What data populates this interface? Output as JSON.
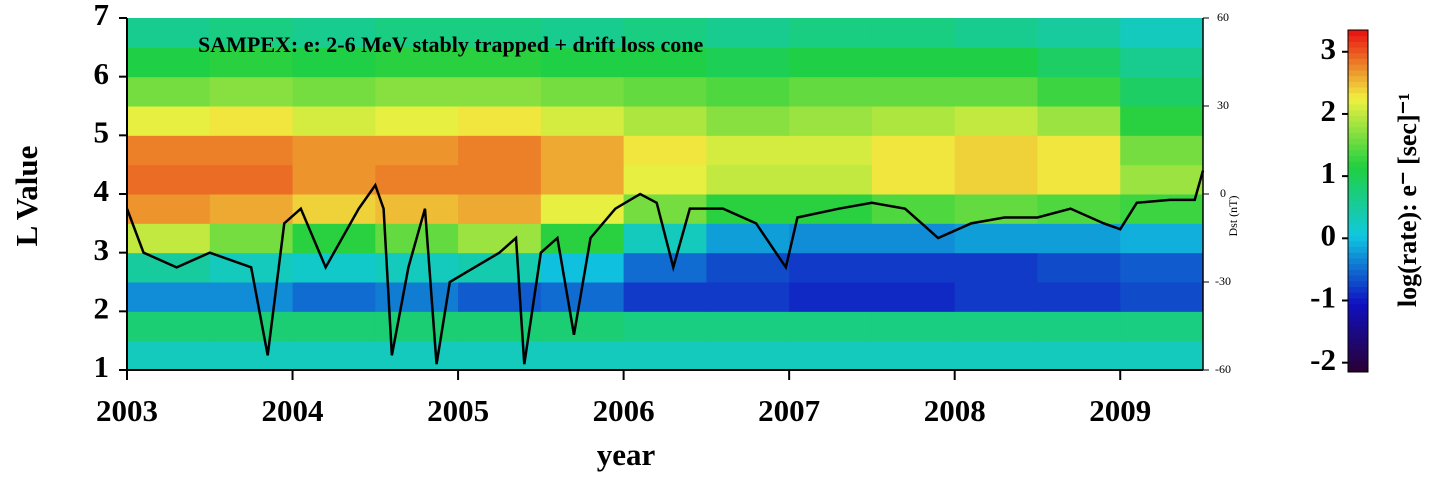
{
  "chart_data": {
    "type": "heatmap",
    "title": "SAMPEX:  e: 2-6 MeV stably trapped + drift loss cone",
    "xlabel": "year",
    "ylabel": "L Value",
    "y2label": "Dst (nT)",
    "colorbar_label": "log(rate): e⁻ [sec]⁻¹",
    "xlim": [
      2003,
      2009.5
    ],
    "xticks": [
      2003,
      2004,
      2005,
      2006,
      2007,
      2008,
      2009
    ],
    "ylim": [
      1,
      7
    ],
    "yticks": [
      1,
      2,
      3,
      4,
      5,
      6,
      7
    ],
    "y2lim": [
      -60,
      60
    ],
    "y2ticks": [
      -60,
      -30,
      0,
      30,
      60
    ],
    "zlim": [
      -2.15,
      3.35
    ],
    "zticks": [
      -2,
      -1,
      0,
      1,
      2,
      3
    ],
    "colormap": [
      "#2a0030",
      "#1010c0",
      "#10c8e0",
      "#20d040",
      "#f0f040",
      "#e81010"
    ],
    "x_bins": [
      2003,
      2003.5,
      2004,
      2004.5,
      2005,
      2005.5,
      2006,
      2006.5,
      2007,
      2007.5,
      2008,
      2008.5,
      2009,
      2009.5
    ],
    "y_bins": [
      1,
      1.5,
      2,
      2.5,
      3,
      3.5,
      4,
      4.5,
      5,
      5.5,
      6,
      6.5,
      7
    ],
    "z": [
      [
        0.3,
        0.3,
        0.3,
        0.3,
        0.3,
        0.3,
        0.3,
        0.3,
        0.3,
        0.3,
        0.3,
        0.3,
        0.3
      ],
      [
        0.8,
        0.8,
        0.8,
        0.8,
        0.8,
        0.8,
        0.7,
        0.7,
        0.7,
        0.7,
        0.7,
        0.7,
        0.7
      ],
      [
        -0.3,
        -0.3,
        -0.5,
        -0.4,
        -0.6,
        -0.5,
        -0.8,
        -0.8,
        -0.9,
        -0.9,
        -0.8,
        -0.8,
        -0.7
      ],
      [
        0.5,
        0.3,
        0.2,
        0.3,
        0.4,
        0.0,
        -0.5,
        -0.7,
        -0.8,
        -0.8,
        -0.8,
        -0.7,
        -0.6
      ],
      [
        2.0,
        1.6,
        1.2,
        1.5,
        1.8,
        1.2,
        0.3,
        -0.2,
        -0.3,
        -0.3,
        -0.2,
        -0.2,
        -0.1
      ],
      [
        2.7,
        2.6,
        2.4,
        2.5,
        2.6,
        2.2,
        1.6,
        1.2,
        1.2,
        1.4,
        1.5,
        1.4,
        1.3
      ],
      [
        2.9,
        2.9,
        2.7,
        2.8,
        2.8,
        2.6,
        2.2,
        2.0,
        2.0,
        2.3,
        2.4,
        2.3,
        1.8
      ],
      [
        2.8,
        2.8,
        2.7,
        2.7,
        2.8,
        2.6,
        2.3,
        2.1,
        2.1,
        2.3,
        2.4,
        2.3,
        1.6
      ],
      [
        2.2,
        2.3,
        2.1,
        2.2,
        2.3,
        2.1,
        1.9,
        1.7,
        1.8,
        1.9,
        2.0,
        1.8,
        1.2
      ],
      [
        1.6,
        1.7,
        1.6,
        1.7,
        1.7,
        1.6,
        1.5,
        1.4,
        1.5,
        1.5,
        1.5,
        1.3,
        0.9
      ],
      [
        1.1,
        1.2,
        1.1,
        1.2,
        1.2,
        1.1,
        1.1,
        1.0,
        1.1,
        1.1,
        1.1,
        0.9,
        0.6
      ],
      [
        0.6,
        0.7,
        0.6,
        0.7,
        0.7,
        0.6,
        0.7,
        0.6,
        0.7,
        0.7,
        0.6,
        0.5,
        0.3
      ]
    ],
    "dst": {
      "color": "#000000",
      "axis": "y2",
      "x": [
        2003.0,
        2003.1,
        2003.3,
        2003.5,
        2003.75,
        2003.85,
        2003.95,
        2004.05,
        2004.2,
        2004.4,
        2004.5,
        2004.55,
        2004.6,
        2004.7,
        2004.8,
        2004.87,
        2004.95,
        2005.1,
        2005.25,
        2005.35,
        2005.4,
        2005.5,
        2005.6,
        2005.7,
        2005.8,
        2005.95,
        2006.1,
        2006.2,
        2006.3,
        2006.4,
        2006.6,
        2006.8,
        2006.98,
        2007.05,
        2007.3,
        2007.5,
        2007.7,
        2007.8,
        2007.9,
        2008.1,
        2008.3,
        2008.5,
        2008.7,
        2008.9,
        2009.0,
        2009.1,
        2009.3,
        2009.45,
        2009.5
      ],
      "values": [
        -5,
        -20,
        -25,
        -20,
        -25,
        -55,
        -10,
        -5,
        -25,
        -5,
        3,
        -5,
        -55,
        -25,
        -5,
        -58,
        -30,
        -25,
        -20,
        -15,
        -58,
        -20,
        -15,
        -48,
        -15,
        -5,
        0,
        -3,
        -25,
        -5,
        -5,
        -10,
        -25,
        -8,
        -5,
        -3,
        -5,
        -10,
        -15,
        -10,
        -8,
        -8,
        -5,
        -10,
        -12,
        -3,
        -2,
        -2,
        8
      ]
    }
  }
}
